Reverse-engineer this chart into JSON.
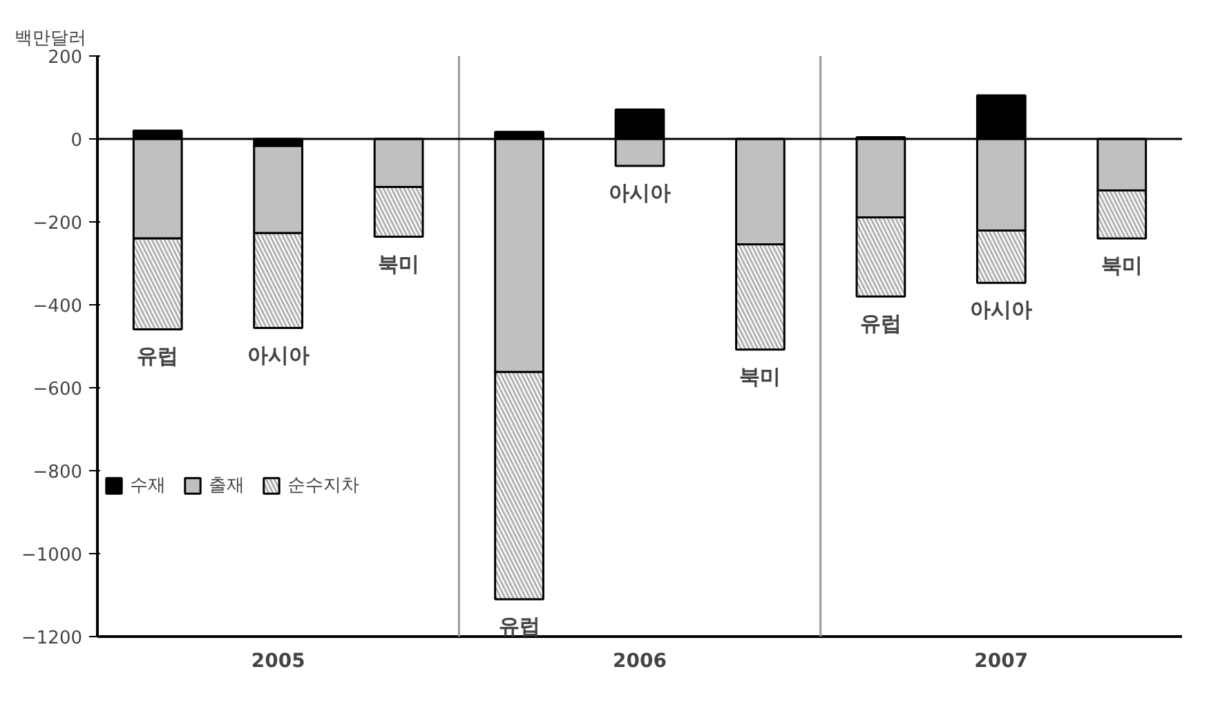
{
  "chart_data": {
    "type": "bar",
    "stacked": true,
    "ylabel": "백만달러",
    "categories": [
      "유럽",
      "아시아",
      "북미",
      "유럽",
      "아시아",
      "북미",
      "유럽",
      "아시아",
      "북미"
    ],
    "series": [
      {
        "name": "수재",
        "color": "#000000",
        "values": [
          20,
          -17,
          null,
          17,
          71,
          null,
          4,
          105,
          null
        ]
      },
      {
        "name": "출재",
        "color": "#c0c0c0",
        "values": [
          -240,
          -210,
          -116,
          -562,
          -65,
          -254,
          -189,
          -221,
          -124
        ]
      },
      {
        "name": "순수지차",
        "color": "#f2f2f2",
        "values": [
          -219,
          -229,
          -120,
          -548,
          null,
          -254,
          -191,
          -126,
          -116
        ]
      }
    ],
    "annotations": [
      "2005",
      "2006",
      "2007"
    ],
    "ref_lines": [
      {
        "axis": "y",
        "value": 0,
        "color": "#000000"
      }
    ],
    "ylim": [
      -1200,
      200
    ],
    "yticks": [
      -1200,
      -1000,
      -800,
      -600,
      -400,
      -200,
      0,
      200
    ],
    "grid": false,
    "legend": "left"
  }
}
